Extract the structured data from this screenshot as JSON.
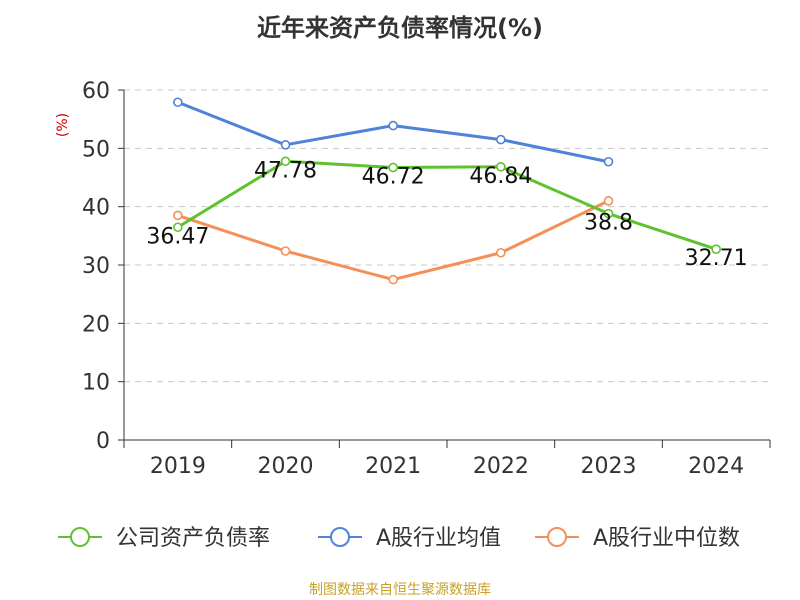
{
  "chart_data": {
    "type": "line",
    "title": "近年来资产负债率情况(%)",
    "ylabel": "(%)",
    "xlabel": "",
    "categories": [
      "2019",
      "2020",
      "2021",
      "2022",
      "2023",
      "2024"
    ],
    "ylim": [
      0,
      60
    ],
    "yticks": [
      0,
      10,
      20,
      30,
      40,
      50,
      60
    ],
    "grid": "horizontal dashed",
    "legend_position": "bottom",
    "series": [
      {
        "name": "公司资产负债率",
        "color": "#5ec22f",
        "values": [
          36.47,
          47.78,
          46.72,
          46.84,
          38.8,
          32.71
        ],
        "show_labels": true
      },
      {
        "name": "A股行业均值",
        "color": "#4f82d9",
        "values": [
          57.9,
          50.6,
          53.9,
          51.5,
          47.7,
          null
        ],
        "show_labels": false
      },
      {
        "name": "A股行业中位数",
        "color": "#f48f57",
        "values": [
          38.5,
          32.4,
          27.5,
          32.1,
          41.0,
          null
        ],
        "show_labels": false
      }
    ]
  },
  "footer": {
    "source": "制图数据来自恒生聚源数据库"
  }
}
